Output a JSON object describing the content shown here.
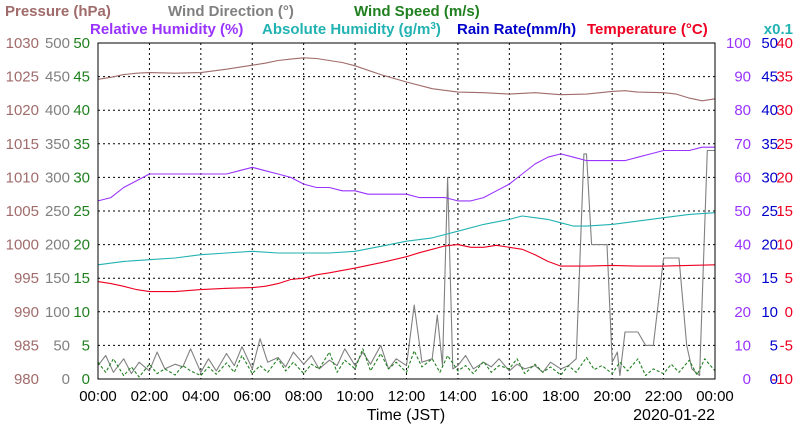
{
  "chart_data": {
    "type": "line",
    "date": "2020-01-22",
    "xlabel": "Time (JST)",
    "x_ticks": [
      "00:00",
      "02:00",
      "04:00",
      "06:00",
      "08:00",
      "10:00",
      "12:00",
      "14:00",
      "16:00",
      "18:00",
      "20:00",
      "22:00",
      "00:00"
    ],
    "x_range_hours": [
      0,
      24
    ],
    "legend": [
      {
        "key": "pressure",
        "label": "Pressure (hPa)",
        "color": "#a06b6b"
      },
      {
        "key": "wind_dir",
        "label": "Wind Direction (°)",
        "color": "#808080"
      },
      {
        "key": "wind_speed",
        "label": "Wind Speed (m/s)",
        "color": "#208020"
      },
      {
        "key": "humidity",
        "label": "Relative Humidity (%)",
        "color": "#9933ff"
      },
      {
        "key": "abs_humidity",
        "label": "Absolute Humidity (g/m",
        "sup": "3",
        "suffix": ")",
        "color": "#22b2b2"
      },
      {
        "key": "rain",
        "label": "Rain Rate(mm/h)",
        "color": "#0000cc"
      },
      {
        "key": "temperature",
        "label": "Temperature (°C)",
        "color": "#ee0022"
      }
    ],
    "right_scale_note": "x0.1",
    "axes": [
      {
        "key": "pressure",
        "side": "left",
        "color": "#a06b6b",
        "range": [
          980,
          1030
        ],
        "ticks": [
          "980",
          "985",
          "990",
          "995",
          "1000",
          "1005",
          "1010",
          "1015",
          "1020",
          "1025",
          "1030"
        ]
      },
      {
        "key": "wind_dir",
        "side": "left",
        "color": "#808080",
        "range": [
          0,
          500
        ],
        "ticks": [
          "0",
          "50",
          "100",
          "150",
          "200",
          "250",
          "300",
          "350",
          "400",
          "450",
          "500"
        ]
      },
      {
        "key": "wind_speed",
        "side": "left",
        "color": "#208020",
        "range": [
          0,
          50
        ],
        "ticks": [
          "0",
          "5",
          "10",
          "15",
          "20",
          "25",
          "30",
          "35",
          "40",
          "45",
          "50"
        ]
      },
      {
        "key": "humidity",
        "side": "right",
        "color": "#9933ff",
        "range": [
          0,
          100
        ],
        "ticks": [
          "0",
          "10",
          "20",
          "30",
          "40",
          "50",
          "60",
          "70",
          "80",
          "90",
          "100"
        ]
      },
      {
        "key": "rain",
        "side": "right",
        "color": "#0000cc",
        "range": [
          0,
          50
        ],
        "ticks": [
          "0",
          "5",
          "10",
          "15",
          "20",
          "25",
          "30",
          "35",
          "40",
          "45",
          "50"
        ]
      },
      {
        "key": "temperature",
        "side": "right",
        "color": "#ee0022",
        "range": [
          -10,
          40
        ],
        "ticks": [
          "-10",
          "-5",
          "0",
          "5",
          "10",
          "15",
          "20",
          "25",
          "30",
          "35",
          "40"
        ]
      }
    ],
    "series": [
      {
        "name": "Pressure (hPa)",
        "axis": "pressure",
        "color": "#a06b6b",
        "t": [
          0,
          0.5,
          1,
          1.5,
          2,
          3,
          4,
          5,
          6,
          6.5,
          7,
          7.5,
          8,
          8.5,
          9,
          9.5,
          10,
          11,
          12,
          13,
          14,
          15,
          16,
          17,
          18,
          19,
          20,
          20.5,
          21,
          22,
          22.5,
          23,
          23.5,
          24
        ],
        "v": [
          1024.6,
          1024.9,
          1025.3,
          1025.5,
          1025.6,
          1025.5,
          1025.6,
          1026.1,
          1026.7,
          1027.0,
          1027.4,
          1027.6,
          1027.8,
          1027.7,
          1027.4,
          1027.1,
          1026.6,
          1025.3,
          1024.2,
          1023.2,
          1022.7,
          1022.6,
          1022.4,
          1022.6,
          1022.3,
          1022.4,
          1022.8,
          1022.9,
          1022.7,
          1022.6,
          1022.4,
          1021.8,
          1021.4,
          1021.7
        ]
      },
      {
        "name": "Wind Direction (°)",
        "axis": "wind_dir",
        "color": "#808080",
        "t": [
          0,
          0.3,
          0.6,
          1,
          1.3,
          1.6,
          2,
          2.3,
          2.6,
          3,
          3.3,
          3.6,
          4,
          4.3,
          4.6,
          5,
          5.3,
          5.6,
          6,
          6.3,
          6.6,
          7,
          7.3,
          7.6,
          8,
          8.3,
          8.6,
          9,
          9.3,
          9.6,
          10,
          10.3,
          10.6,
          11,
          11.3,
          11.6,
          12,
          12.3,
          12.6,
          13,
          13.2,
          13.4,
          13.6,
          13.8,
          14,
          14.3,
          14.6,
          15,
          15.3,
          15.6,
          16,
          16.3,
          16.6,
          17,
          17.3,
          17.6,
          18,
          18.3,
          18.6,
          18.9,
          19.0,
          19.2,
          19.5,
          19.8,
          20,
          20.2,
          20.3,
          20.5,
          20.8,
          21,
          21.3,
          21.6,
          22,
          22.3,
          22.6,
          22.9,
          23.1,
          23.4,
          23.7,
          24
        ],
        "v": [
          20,
          35,
          10,
          30,
          8,
          25,
          12,
          40,
          15,
          22,
          18,
          45,
          10,
          30,
          12,
          38,
          20,
          48,
          15,
          60,
          25,
          32,
          18,
          40,
          22,
          35,
          15,
          28,
          20,
          45,
          20,
          40,
          22,
          50,
          15,
          30,
          20,
          110,
          25,
          30,
          95,
          20,
          300,
          15,
          20,
          35,
          15,
          25,
          18,
          30,
          12,
          22,
          15,
          20,
          10,
          25,
          15,
          20,
          30,
          335,
          335,
          200,
          200,
          200,
          25,
          40,
          5,
          70,
          70,
          70,
          50,
          50,
          180,
          180,
          180,
          50,
          15,
          5,
          340,
          340
        ]
      },
      {
        "name": "Wind Speed (m/s)",
        "axis": "wind_speed",
        "color": "#208020",
        "style": "dashed",
        "t": [
          0,
          0.3,
          0.6,
          1,
          1.3,
          1.6,
          2,
          2.3,
          2.6,
          3,
          3.3,
          3.6,
          4,
          4.3,
          4.6,
          5,
          5.3,
          5.6,
          6,
          6.3,
          6.6,
          7,
          7.3,
          7.6,
          8,
          8.3,
          8.6,
          9,
          9.3,
          9.6,
          10,
          10.3,
          10.6,
          11,
          11.3,
          11.6,
          12,
          12.3,
          12.6,
          13,
          13.3,
          13.6,
          14,
          14.3,
          14.6,
          15,
          15.3,
          15.6,
          16,
          16.3,
          16.6,
          17,
          17.3,
          17.6,
          18,
          18.3,
          18.6,
          19,
          19.3,
          19.6,
          20,
          20.3,
          20.6,
          21,
          21.3,
          21.6,
          22,
          22.3,
          22.6,
          23,
          23.3,
          23.6,
          24
        ],
        "v": [
          2.5,
          1.0,
          3.0,
          0.5,
          1.8,
          0.3,
          2.2,
          0.8,
          1.5,
          0.6,
          2.0,
          1.2,
          0.5,
          1.8,
          0.7,
          2.4,
          1.0,
          3.5,
          0.8,
          2.0,
          1.0,
          3.0,
          1.2,
          2.5,
          0.8,
          2.2,
          1.5,
          4.0,
          1.0,
          2.8,
          1.5,
          4.5,
          1.2,
          3.8,
          1.5,
          2.5,
          1.0,
          4.2,
          1.8,
          3.0,
          1.0,
          3.5,
          1.2,
          2.0,
          0.8,
          2.6,
          1.0,
          2.0,
          1.5,
          3.0,
          0.8,
          2.2,
          1.0,
          1.8,
          0.6,
          2.0,
          1.0,
          3.2,
          1.4,
          2.0,
          0.8,
          2.5,
          1.2,
          3.0,
          0.5,
          1.5,
          0.8,
          2.2,
          1.0,
          2.8,
          0.6,
          3.0,
          1.2,
          1.0
        ]
      },
      {
        "name": "Relative Humidity (%)",
        "axis": "humidity",
        "color": "#9933ff",
        "t": [
          0,
          0.5,
          1,
          1.5,
          2,
          2.5,
          3,
          4,
          5,
          5.5,
          6,
          6.5,
          7,
          7.5,
          8,
          8.5,
          9,
          9.5,
          10,
          10.5,
          11,
          11.5,
          12,
          12.5,
          13,
          13.5,
          14,
          14.5,
          15,
          15.5,
          16,
          16.5,
          17,
          17.5,
          18,
          18.5,
          19,
          19.5,
          20,
          20.5,
          21,
          21.5,
          22,
          22.5,
          23,
          23.5,
          24
        ],
        "v": [
          53,
          54,
          57,
          59,
          61,
          61,
          61,
          61,
          61,
          62,
          63,
          62,
          61,
          60,
          58,
          57,
          57,
          56,
          56,
          55,
          55,
          55,
          55,
          54,
          54,
          54,
          53,
          53,
          54,
          56,
          58,
          61,
          64,
          66,
          67,
          66,
          65,
          65,
          65,
          65,
          66,
          67,
          68,
          68,
          68,
          69,
          69
        ]
      },
      {
        "name": "Absolute Humidity (g/m3)",
        "axis": "humidity",
        "color": "#22b2b2",
        "t": [
          0,
          1,
          2,
          3,
          4,
          5,
          6,
          7,
          8,
          9,
          10,
          11,
          12,
          13,
          14,
          15,
          16,
          16.5,
          17,
          17.5,
          18,
          18.5,
          19,
          20,
          21,
          22,
          23,
          24
        ],
        "v": [
          34.0,
          35.0,
          35.5,
          36.0,
          37.0,
          37.5,
          38.0,
          37.5,
          37.5,
          37.5,
          38.0,
          39.5,
          41.0,
          42.0,
          44.0,
          46.0,
          47.5,
          48.5,
          48.0,
          47.5,
          46.5,
          45.5,
          45.5,
          46.0,
          47.0,
          48.0,
          49.0,
          49.5
        ]
      },
      {
        "name": "Rain Rate(mm/h)",
        "axis": "rain",
        "color": "#0000cc",
        "t": [
          0,
          24
        ],
        "v": [
          0,
          0
        ]
      },
      {
        "name": "Temperature (°C)",
        "axis": "temperature",
        "color": "#ee0022",
        "t": [
          0,
          0.5,
          1,
          1.5,
          2,
          3,
          4,
          5,
          6,
          6.5,
          7,
          7.5,
          8,
          8.5,
          9,
          10,
          11,
          12,
          12.5,
          13,
          13.5,
          14,
          14.5,
          15,
          15.5,
          16,
          16.5,
          17,
          17.5,
          18,
          19,
          20,
          21,
          22,
          23,
          24
        ],
        "v": [
          4.5,
          4.2,
          3.8,
          3.3,
          3.0,
          3.0,
          3.3,
          3.5,
          3.6,
          3.8,
          4.2,
          4.8,
          5.0,
          5.5,
          5.8,
          6.5,
          7.3,
          8.2,
          8.8,
          9.3,
          9.8,
          10.0,
          9.6,
          9.6,
          9.9,
          9.6,
          9.3,
          8.5,
          7.5,
          6.8,
          6.8,
          6.9,
          6.8,
          6.8,
          6.9,
          7.0
        ]
      }
    ]
  }
}
